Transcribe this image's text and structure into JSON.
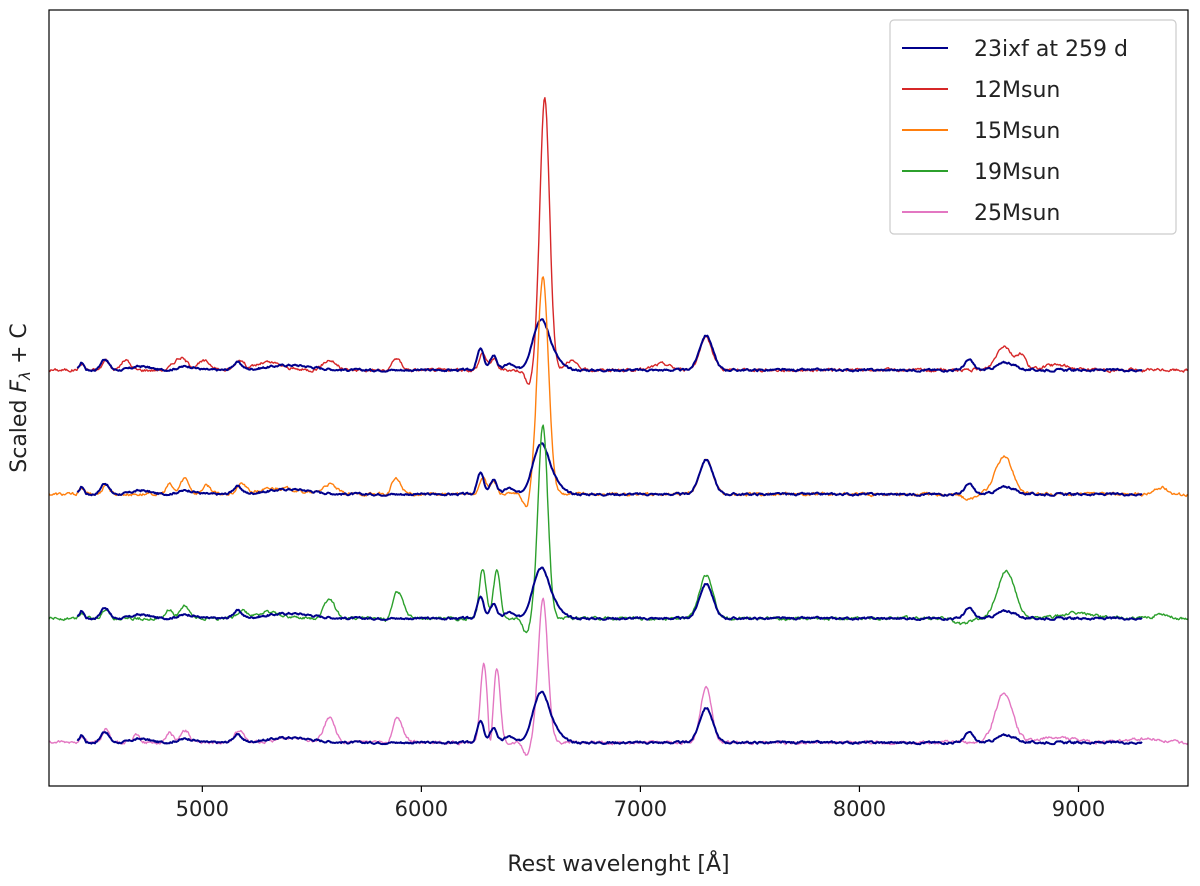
{
  "chart_data": {
    "type": "line",
    "title": "",
    "xlabel": "Rest wavelenght [Å]",
    "ylabel_main": "Scaled ",
    "ylabel_var": "F",
    "ylabel_sub": "λ",
    "ylabel_tail": " + C",
    "xlim": [
      4300,
      9500
    ],
    "ylim": [
      -0.35,
      5.9
    ],
    "xticks": [
      5000,
      6000,
      7000,
      8000,
      9000
    ],
    "y_ticks_shown": false,
    "grid": false,
    "legend_position": "top-right",
    "legend": [
      {
        "label": "23ixf at 259 d",
        "color": "#00008b"
      },
      {
        "label": "12Msun",
        "color": "#d62728"
      },
      {
        "label": "15Msun",
        "color": "#ff7f0e"
      },
      {
        "label": "19Msun",
        "color": "#2ca02c"
      },
      {
        "label": "25Msun",
        "color": "#e377c2"
      }
    ],
    "offsets": [
      3.0,
      2.0,
      1.0,
      0.0
    ],
    "observed": {
      "name": "23ixf at 259 d",
      "color": "#00008b",
      "x_range": [
        4430,
        9290
      ],
      "baseline": 0.0,
      "features": [
        {
          "center": 4450,
          "height": 0.06,
          "width": 10
        },
        {
          "center": 4555,
          "height": 0.09,
          "width": 18
        },
        {
          "center": 4720,
          "height": 0.03,
          "width": 40
        },
        {
          "center": 4930,
          "height": 0.03,
          "width": 40
        },
        {
          "center": 5160,
          "height": 0.06,
          "width": 20
        },
        {
          "center": 5400,
          "height": 0.04,
          "width": 100
        },
        {
          "center": 6270,
          "height": 0.17,
          "width": 15
        },
        {
          "center": 6330,
          "height": 0.12,
          "width": 15
        },
        {
          "center": 6400,
          "height": 0.05,
          "width": 20
        },
        {
          "center": 6540,
          "height": 0.35,
          "width": 35
        },
        {
          "center": 6590,
          "height": 0.12,
          "width": 40
        },
        {
          "center": 7300,
          "height": 0.28,
          "width": 30
        },
        {
          "center": 8500,
          "height": 0.08,
          "width": 20
        },
        {
          "center": 8670,
          "height": 0.06,
          "width": 40
        }
      ]
    },
    "models": [
      {
        "name": "12Msun",
        "color": "#d62728",
        "offset": 3.0,
        "x_range": [
          4300,
          9500
        ],
        "features": [
          {
            "center": 4450,
            "height": 0.05,
            "width": 12
          },
          {
            "center": 4560,
            "height": 0.08,
            "width": 15
          },
          {
            "center": 4650,
            "height": 0.08,
            "width": 20
          },
          {
            "center": 4900,
            "height": 0.1,
            "width": 30
          },
          {
            "center": 5010,
            "height": 0.07,
            "width": 30
          },
          {
            "center": 5170,
            "height": 0.08,
            "width": 20
          },
          {
            "center": 5300,
            "height": 0.06,
            "width": 60
          },
          {
            "center": 5580,
            "height": 0.08,
            "width": 30
          },
          {
            "center": 5880,
            "height": 0.1,
            "width": 25
          },
          {
            "center": 6280,
            "height": 0.14,
            "width": 15
          },
          {
            "center": 6330,
            "height": 0.09,
            "width": 15
          },
          {
            "center": 6563,
            "height": 2.2,
            "width": 22
          },
          {
            "center": 6680,
            "height": 0.08,
            "width": 25
          },
          {
            "center": 7100,
            "height": 0.05,
            "width": 40
          },
          {
            "center": 7300,
            "height": 0.25,
            "width": 30
          },
          {
            "center": 8660,
            "height": 0.2,
            "width": 35
          },
          {
            "center": 8740,
            "height": 0.12,
            "width": 20
          },
          {
            "center": 8900,
            "height": 0.04,
            "width": 60
          }
        ],
        "dips": [
          {
            "center": 6490,
            "depth": 0.12,
            "width": 15
          },
          {
            "center": 5850,
            "depth": 0.05,
            "width": 15
          }
        ]
      },
      {
        "name": "15Msun",
        "color": "#ff7f0e",
        "offset": 2.0,
        "x_range": [
          4300,
          9500
        ],
        "features": [
          {
            "center": 4450,
            "height": 0.05,
            "width": 12
          },
          {
            "center": 4560,
            "height": 0.08,
            "width": 15
          },
          {
            "center": 4850,
            "height": 0.08,
            "width": 15
          },
          {
            "center": 4920,
            "height": 0.13,
            "width": 20
          },
          {
            "center": 5020,
            "height": 0.07,
            "width": 20
          },
          {
            "center": 5180,
            "height": 0.08,
            "width": 20
          },
          {
            "center": 5350,
            "height": 0.05,
            "width": 80
          },
          {
            "center": 5580,
            "height": 0.08,
            "width": 30
          },
          {
            "center": 5880,
            "height": 0.13,
            "width": 25
          },
          {
            "center": 6280,
            "height": 0.14,
            "width": 15
          },
          {
            "center": 6330,
            "height": 0.1,
            "width": 15
          },
          {
            "center": 6555,
            "height": 1.75,
            "width": 25
          },
          {
            "center": 7300,
            "height": 0.28,
            "width": 30
          },
          {
            "center": 8660,
            "height": 0.3,
            "width": 40
          },
          {
            "center": 9380,
            "height": 0.05,
            "width": 30
          }
        ],
        "dips": [
          {
            "center": 6480,
            "depth": 0.12,
            "width": 15
          },
          {
            "center": 5850,
            "depth": 0.05,
            "width": 15
          },
          {
            "center": 8500,
            "depth": 0.04,
            "width": 30
          }
        ]
      },
      {
        "name": "19Msun",
        "color": "#2ca02c",
        "offset": 1.0,
        "x_range": [
          4300,
          9500
        ],
        "features": [
          {
            "center": 4450,
            "height": 0.05,
            "width": 12
          },
          {
            "center": 4560,
            "height": 0.08,
            "width": 15
          },
          {
            "center": 4850,
            "height": 0.07,
            "width": 15
          },
          {
            "center": 4920,
            "height": 0.1,
            "width": 20
          },
          {
            "center": 5180,
            "height": 0.06,
            "width": 20
          },
          {
            "center": 5300,
            "height": 0.05,
            "width": 60
          },
          {
            "center": 5580,
            "height": 0.16,
            "width": 25
          },
          {
            "center": 5890,
            "height": 0.22,
            "width": 25
          },
          {
            "center": 6280,
            "height": 0.4,
            "width": 15
          },
          {
            "center": 6345,
            "height": 0.4,
            "width": 15
          },
          {
            "center": 6555,
            "height": 1.55,
            "width": 22
          },
          {
            "center": 7300,
            "height": 0.35,
            "width": 30
          },
          {
            "center": 8670,
            "height": 0.38,
            "width": 40
          },
          {
            "center": 9000,
            "height": 0.04,
            "width": 80
          },
          {
            "center": 9380,
            "height": 0.04,
            "width": 30
          }
        ],
        "dips": [
          {
            "center": 6480,
            "depth": 0.12,
            "width": 15
          },
          {
            "center": 5850,
            "depth": 0.05,
            "width": 15
          },
          {
            "center": 8470,
            "depth": 0.05,
            "width": 30
          }
        ]
      },
      {
        "name": "25Msun",
        "color": "#e377c2",
        "offset": 0.0,
        "x_range": [
          4300,
          9500
        ],
        "features": [
          {
            "center": 4450,
            "height": 0.05,
            "width": 12
          },
          {
            "center": 4560,
            "height": 0.1,
            "width": 15
          },
          {
            "center": 4700,
            "height": 0.06,
            "width": 15
          },
          {
            "center": 4850,
            "height": 0.08,
            "width": 15
          },
          {
            "center": 4920,
            "height": 0.1,
            "width": 20
          },
          {
            "center": 5170,
            "height": 0.1,
            "width": 20
          },
          {
            "center": 5400,
            "height": 0.04,
            "width": 60
          },
          {
            "center": 5580,
            "height": 0.2,
            "width": 25
          },
          {
            "center": 5890,
            "height": 0.2,
            "width": 25
          },
          {
            "center": 6285,
            "height": 0.65,
            "width": 15
          },
          {
            "center": 6345,
            "height": 0.6,
            "width": 15
          },
          {
            "center": 6555,
            "height": 1.15,
            "width": 22
          },
          {
            "center": 7300,
            "height": 0.45,
            "width": 25
          },
          {
            "center": 8660,
            "height": 0.4,
            "width": 40
          },
          {
            "center": 8900,
            "height": 0.04,
            "width": 80
          },
          {
            "center": 9300,
            "height": 0.03,
            "width": 80
          }
        ],
        "dips": [
          {
            "center": 6480,
            "depth": 0.1,
            "width": 15
          },
          {
            "center": 5850,
            "depth": 0.05,
            "width": 15
          },
          {
            "center": 6315,
            "depth": 0.15,
            "width": 8
          }
        ]
      }
    ]
  }
}
